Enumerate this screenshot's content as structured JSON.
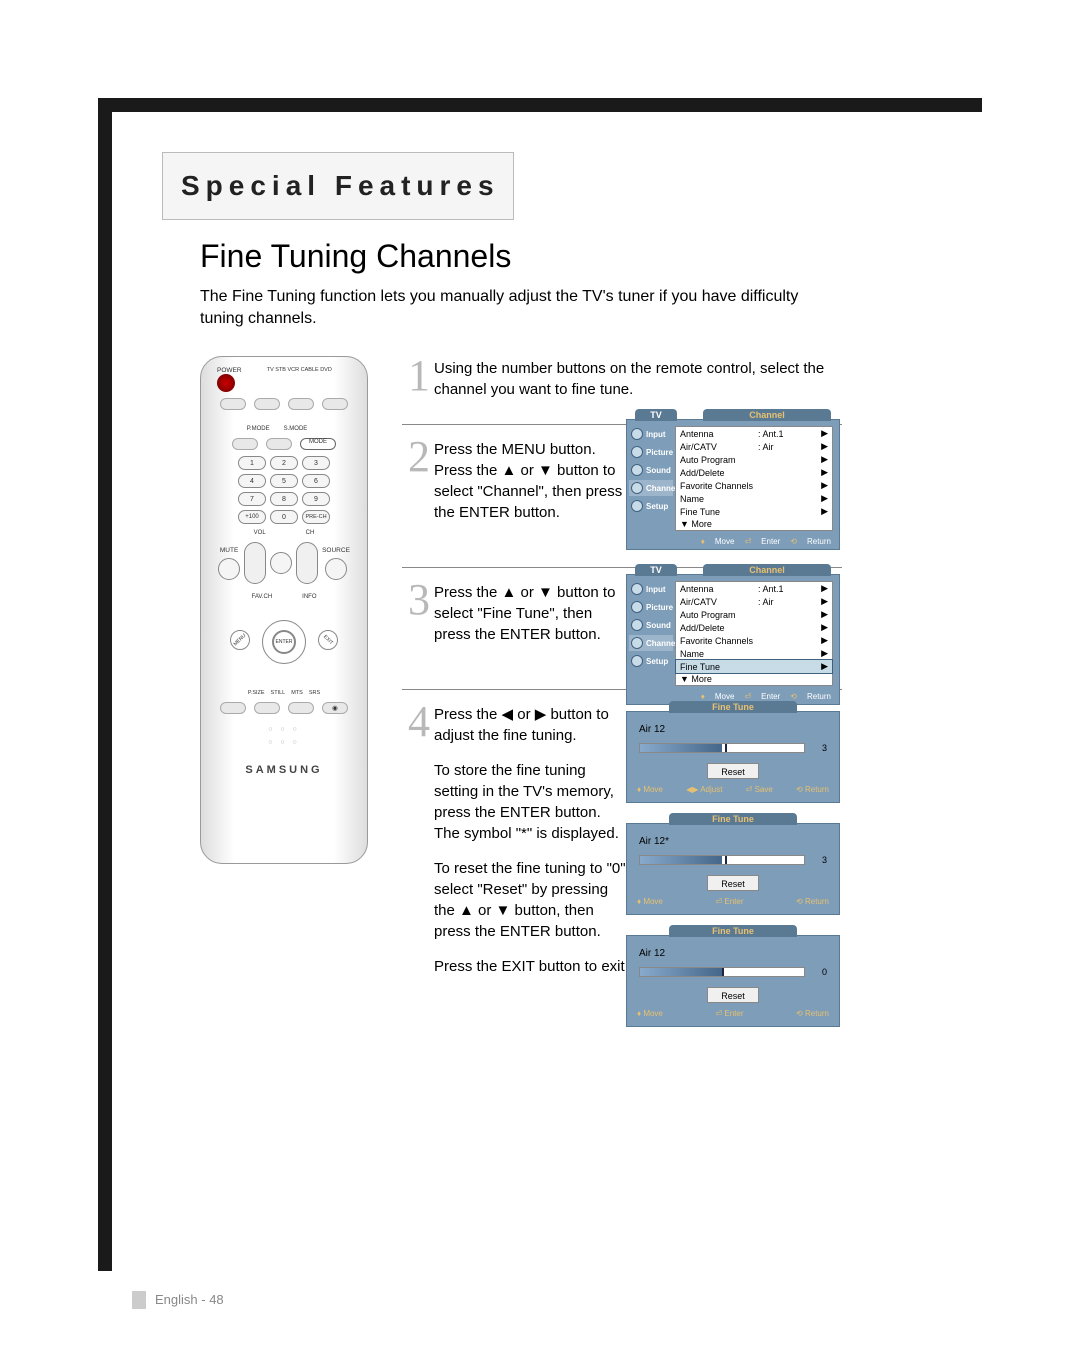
{
  "header": {
    "title": "Special Features"
  },
  "section": {
    "title": "Fine Tuning Channels",
    "intro": "The Fine Tuning function lets you manually adjust the TV's tuner if you have difficulty tuning channels."
  },
  "remote": {
    "top_labels": "TV  STB  VCR  CABLE  DVD",
    "power_label": "POWER",
    "pmode": "P.MODE",
    "smode": "S.MODE",
    "mode": "MODE",
    "plus100": "+100",
    "prech": "PRE-CH",
    "vol": "VOL",
    "ch": "CH",
    "mute": "MUTE",
    "source": "SOURCE",
    "favch": "FAV.CH",
    "info": "INFO",
    "menu": "MENU",
    "exit": "EXIT",
    "enter": "ENTER",
    "bottom_row": [
      "P.SIZE",
      "STILL",
      "MTS",
      "SRS"
    ],
    "brand": "SAMSUNG",
    "numbers": [
      "1",
      "2",
      "3",
      "4",
      "5",
      "6",
      "7",
      "8",
      "9",
      "0"
    ]
  },
  "steps": [
    {
      "n": "1",
      "text": "Using the number buttons on the remote control, select the channel you want to fine tune."
    },
    {
      "n": "2",
      "text": "Press the MENU button.\nPress the ▲ or ▼ button to select \"Channel\", then press the ENTER button."
    },
    {
      "n": "3",
      "text": "Press the ▲ or ▼ button to select \"Fine Tune\", then press the ENTER button."
    },
    {
      "n": "4",
      "p1": "Press the ◀ or ▶ button to adjust the fine tuning.",
      "p2": "To store the fine tuning setting in the TV's memory, press the ENTER button. The symbol \"*\" is displayed.",
      "p3": "To reset the fine tuning to \"0\", select \"Reset\" by pressing the ▲ or ▼ button, then press the ENTER button.",
      "p4": "Press the EXIT button to exit."
    }
  ],
  "osd": {
    "tv_label": "TV",
    "title": "Channel",
    "icons": [
      "Input",
      "Picture",
      "Sound",
      "Channel",
      "Setup"
    ],
    "menuA": [
      {
        "lab": "Antenna",
        "val": ": Ant.1"
      },
      {
        "lab": "Air/CATV",
        "val": ": Air"
      },
      {
        "lab": "Auto Program",
        "val": ""
      },
      {
        "lab": "Add/Delete",
        "val": ""
      },
      {
        "lab": "Favorite Channels",
        "val": ""
      },
      {
        "lab": "Name",
        "val": ""
      },
      {
        "lab": "Fine Tune",
        "val": ""
      },
      {
        "lab": "▼ More",
        "val": "",
        "noarr": true
      }
    ],
    "sel_icon_a": 3,
    "sel_icon_b": 3,
    "sel_row_b": 6,
    "foot": {
      "move": "Move",
      "enter": "Enter",
      "return": "Return",
      "adjust": "Adjust",
      "save": "Save"
    }
  },
  "finetune": {
    "title": "Fine Tune",
    "ch_plain": "Air 12",
    "ch_star": "Air 12*",
    "val_3": "3",
    "val_0": "0",
    "slider_pos_3": 50,
    "slider_tick_3": 52,
    "slider_pos_0": 50,
    "slider_tick_0": 50,
    "reset": "Reset"
  },
  "footer": {
    "text": "English - 48"
  },
  "colors": {
    "osd_bg": "#7d9db8",
    "osd_tab": "#5a7a94",
    "osd_accent": "#e8c070",
    "stepnum": "#b8b8b8"
  }
}
